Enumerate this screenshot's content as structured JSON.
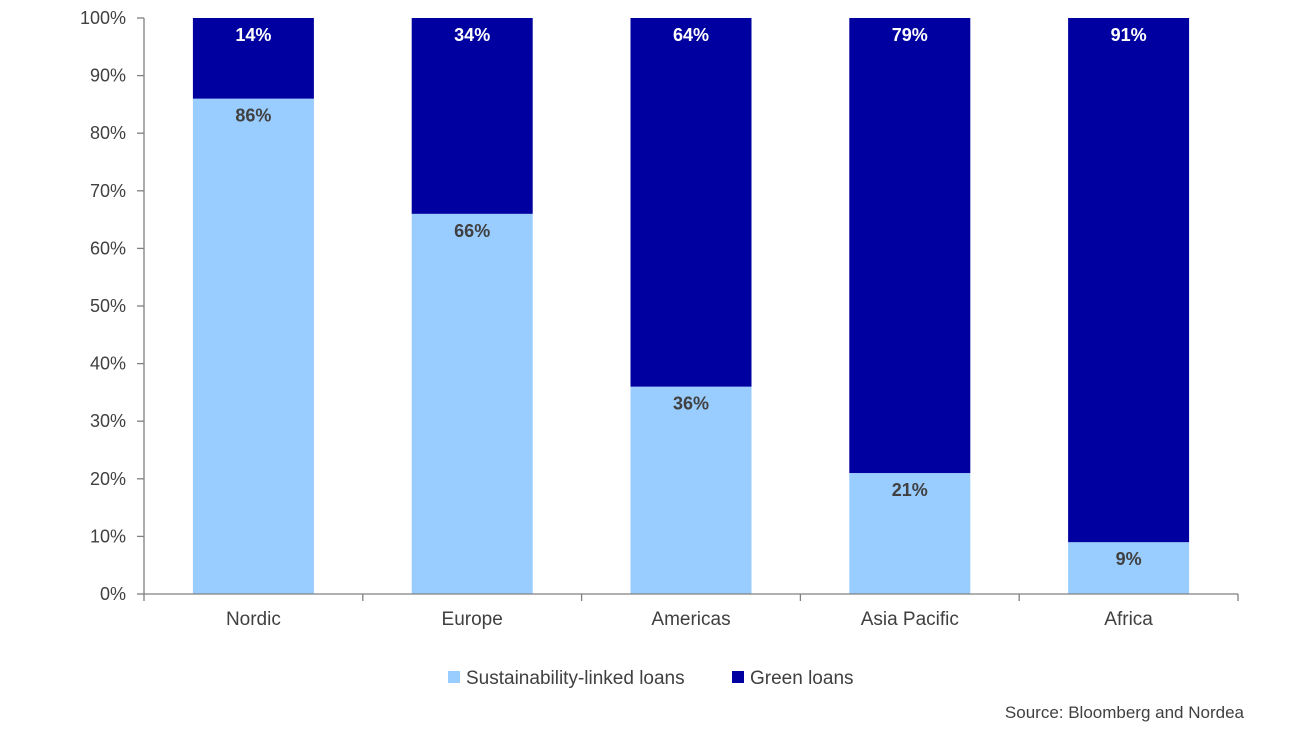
{
  "chart_data": {
    "type": "bar",
    "stacked": true,
    "categories": [
      "Nordic",
      "Europe",
      "Americas",
      "Asia Pacific",
      "Africa"
    ],
    "series": [
      {
        "name": "Sustainability-linked loans",
        "values": [
          86,
          66,
          36,
          21,
          9
        ],
        "color": "#99ccff"
      },
      {
        "name": "Green loans",
        "values": [
          14,
          34,
          64,
          79,
          91
        ],
        "color": "#0000a0"
      }
    ],
    "data_labels": {
      "Sustainability-linked loans": [
        "86%",
        "66%",
        "36%",
        "21%",
        "9%"
      ],
      "Green loans": [
        "14%",
        "34%",
        "64%",
        "79%",
        "91%"
      ]
    },
    "yticks": [
      "0%",
      "10%",
      "20%",
      "30%",
      "40%",
      "50%",
      "60%",
      "70%",
      "80%",
      "90%",
      "100%"
    ],
    "ylim": [
      0,
      100
    ],
    "grid": false,
    "legend": "bottom",
    "title": "",
    "xlabel": "",
    "ylabel": ""
  },
  "source": "Source: Bloomberg and Nordea"
}
